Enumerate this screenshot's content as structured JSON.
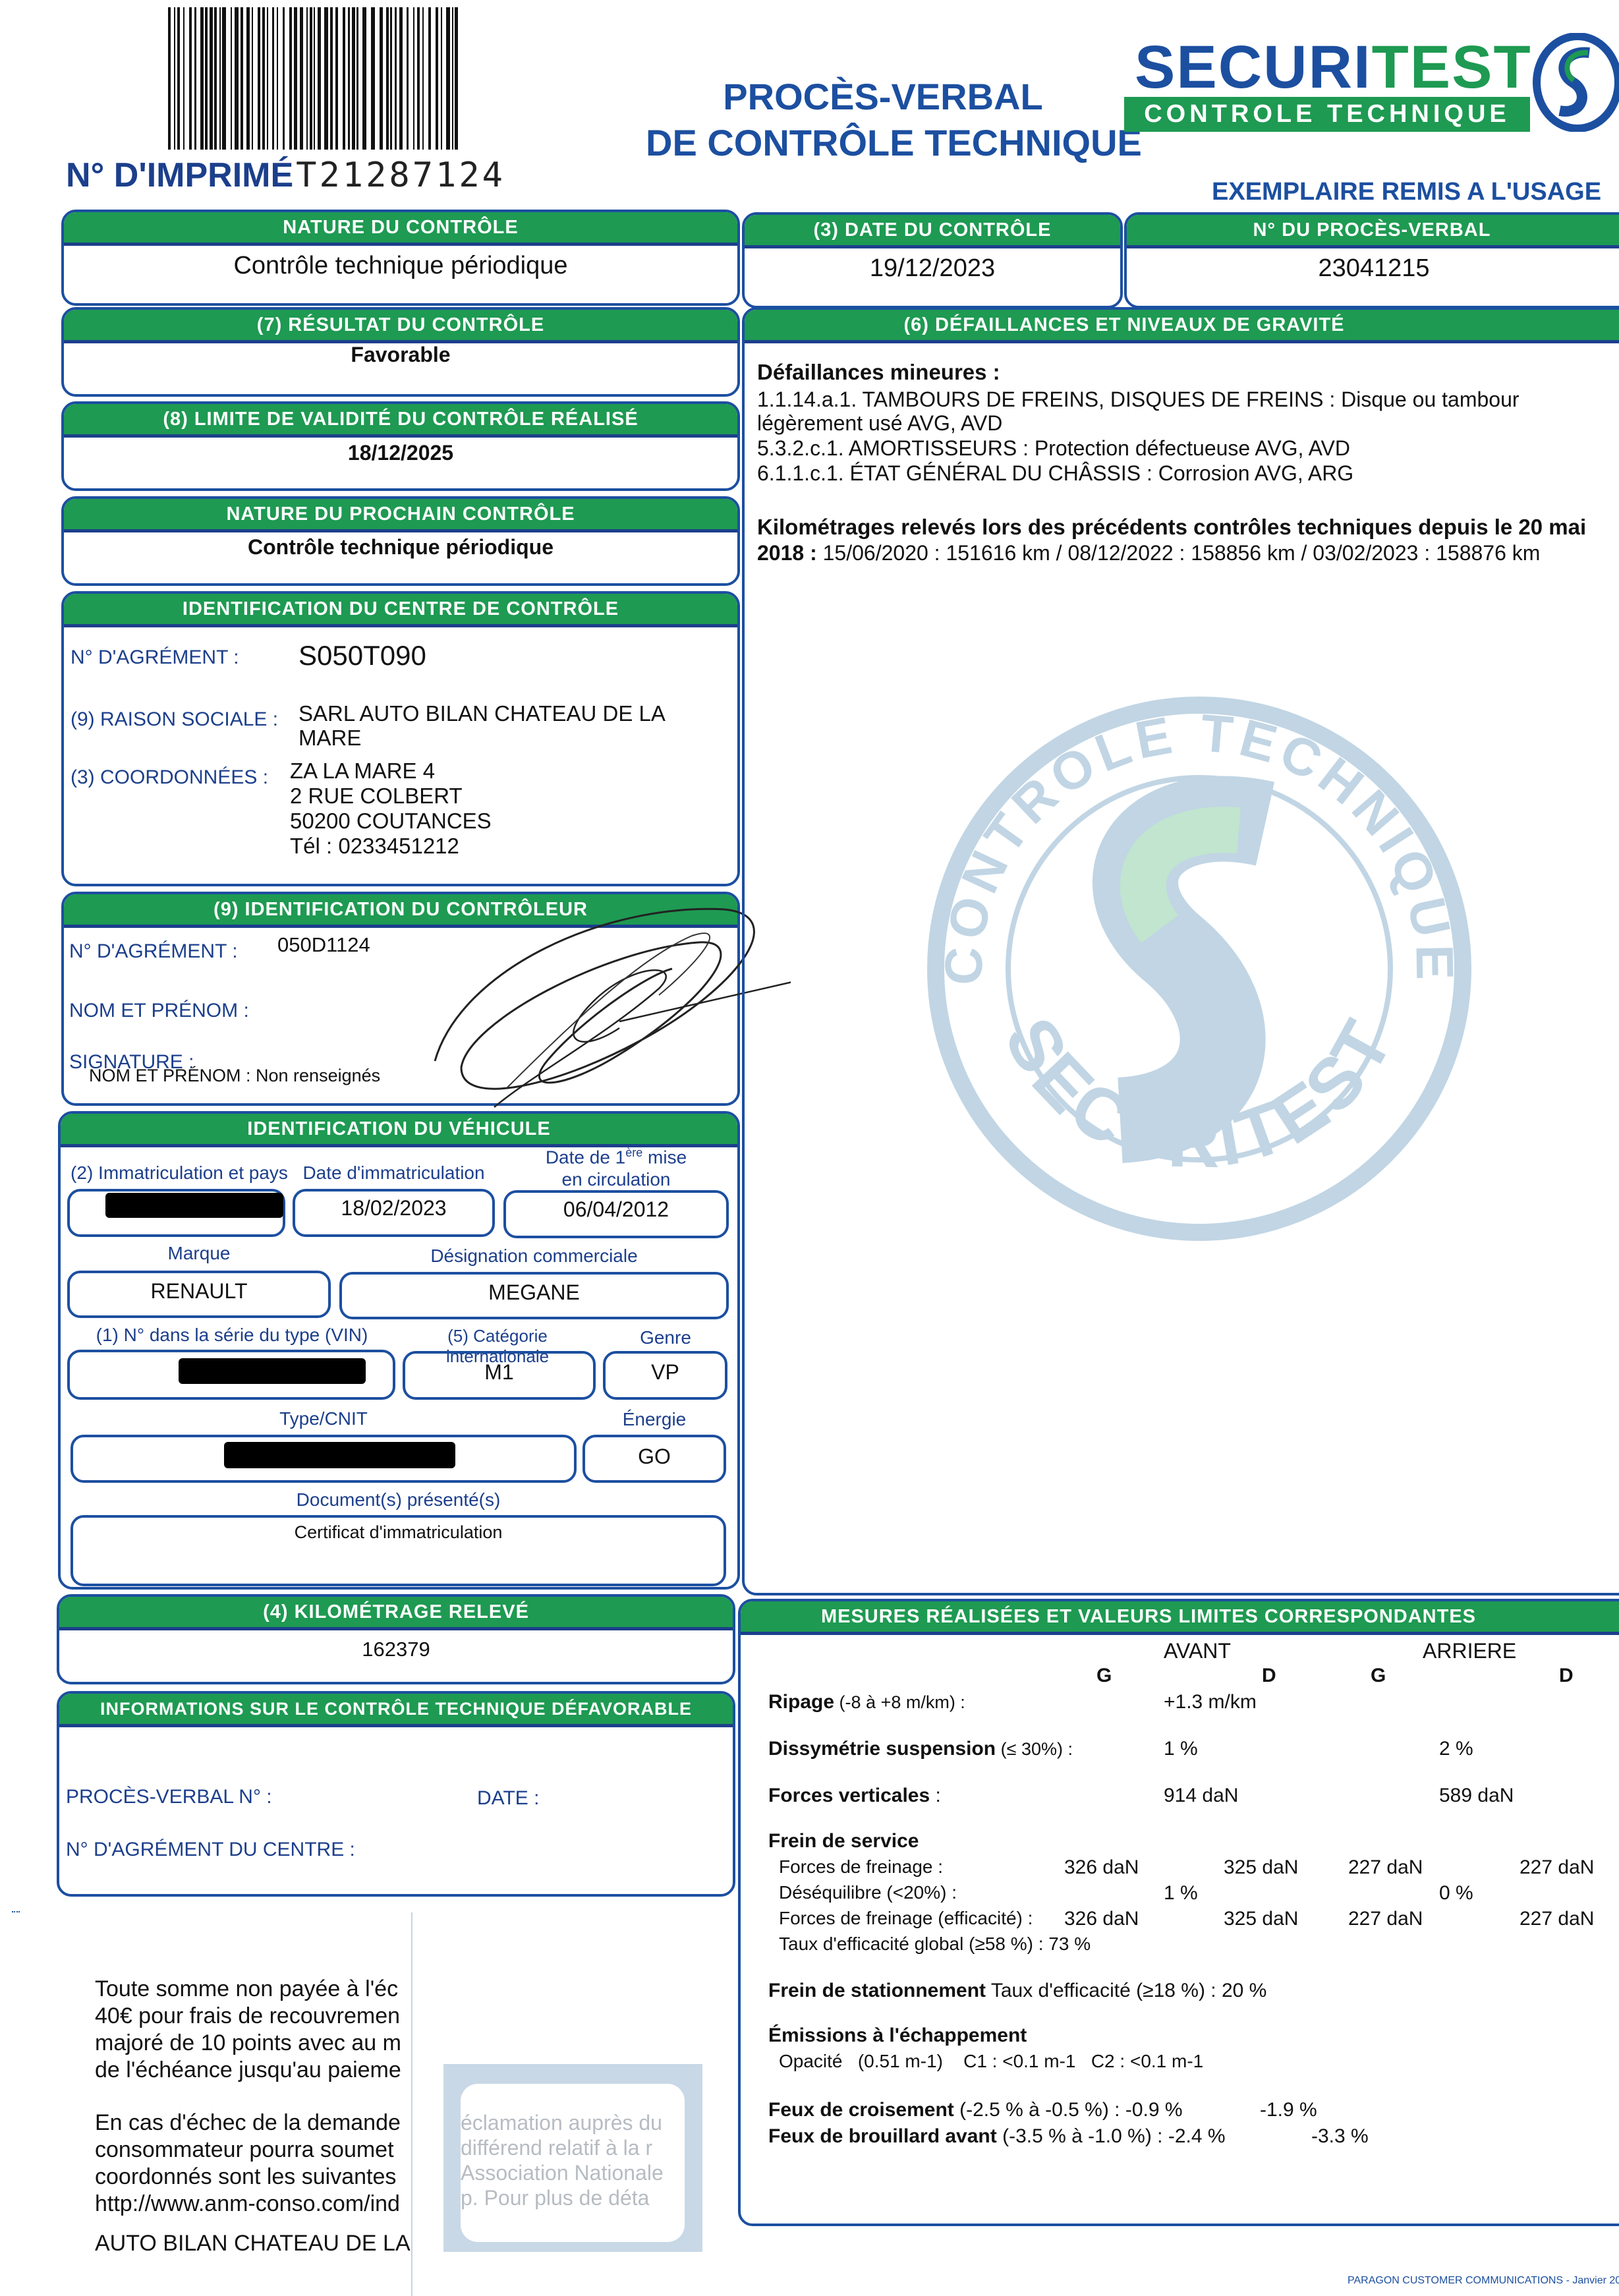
{
  "header": {
    "print_number_label": "N° D'IMPRIMÉ",
    "print_number": "T21287124",
    "title_line1": "PROCÈS-VERBAL",
    "title_line2": "DE CONTRÔLE TECHNIQUE",
    "brand_name_part1": "SECURI",
    "brand_name_part2": "TEST",
    "brand_tagline": "CONTROLE TECHNIQUE",
    "copy_label": "EXEMPLAIRE REMIS A L'USAGE"
  },
  "nature": {
    "title": "NATURE DU CONTRÔLE",
    "value": "Contrôle technique périodique"
  },
  "date": {
    "title": "(3) DATE DU CONTRÔLE",
    "value": "19/12/2023"
  },
  "pv_number": {
    "title": "N° DU PROCÈS-VERBAL",
    "value": "23041215"
  },
  "result": {
    "title": "(7) RÉSULTAT DU CONTRÔLE",
    "value": "Favorable"
  },
  "validity": {
    "title": "(8) LIMITE DE VALIDITÉ DU CONTRÔLE RÉALISÉ",
    "value": "18/12/2025"
  },
  "next_control": {
    "title": "NATURE DU PROCHAIN CONTRÔLE",
    "value": "Contrôle technique périodique"
  },
  "centre": {
    "title": "IDENTIFICATION DU CENTRE DE CONTRÔLE",
    "agrement_label": "N° D'AGRÉMENT :",
    "agrement": "S050T090",
    "raison_label": "(9) RAISON SOCIALE :",
    "raison_lines": [
      "SARL AUTO BILAN CHATEAU DE LA",
      "MARE"
    ],
    "coord_label": "(3) COORDONNÉES :",
    "coord_lines": [
      "ZA LA MARE 4",
      "2 RUE COLBERT",
      "50200 COUTANCES",
      "Tél : 0233451212"
    ]
  },
  "controller": {
    "title": "(9) IDENTIFICATION DU CONTRÔLEUR",
    "agrement_label": "N° D'AGRÉMENT :",
    "agrement": "050D1124",
    "name_label": "NOM ET PRÉNOM :",
    "signature_label": "SIGNATURE :",
    "name_note": "NOM ET PRÉNOM : Non renseignés"
  },
  "vehicle": {
    "title": "IDENTIFICATION DU VÉHICULE",
    "immat_label": "(2) Immatriculation et pays",
    "date_immat_label": "Date d'immatriculation",
    "date_immat": "18/02/2023",
    "first_circ_label_a": "Date de 1",
    "first_circ_label_sup": "ère",
    "first_circ_label_b": " mise",
    "first_circ_label_c": "en circulation",
    "first_circ": "06/04/2012",
    "marque_label": "Marque",
    "marque": "RENAULT",
    "designation_label": "Désignation commerciale",
    "designation": "MEGANE",
    "vin_label": "(1) N° dans la série du type (VIN)",
    "categorie_label": "(5) Catégorie internationale",
    "categorie": "M1",
    "genre_label": "Genre",
    "genre": "VP",
    "type_label": "Type/CNIT",
    "energie_label": "Énergie",
    "energie": "GO",
    "documents_label": "Document(s) présenté(s)",
    "documents": "Certificat d'immatriculation"
  },
  "mileage": {
    "title": "(4) KILOMÉTRAGE RELEVÉ",
    "value": "162379"
  },
  "unfavorable": {
    "title": "INFORMATIONS SUR LE CONTRÔLE TECHNIQUE DÉFAVORABLE",
    "pv_label": "PROCÈS-VERBAL N° :",
    "date_label": "DATE :",
    "agrement_label": "N° D'AGRÉMENT DU CENTRE :"
  },
  "defects": {
    "title": "(6) DÉFAILLANCES ET NIVEAUX DE GRAVITÉ",
    "heading": "Défaillances mineures :",
    "lines": [
      "1.1.14.a.1. TAMBOURS DE FREINS, DISQUES DE FREINS : Disque ou tambour",
      "légèrement usé AVG, AVD",
      "5.3.2.c.1. AMORTISSEURS : Protection défectueuse AVG, AVD",
      "6.1.1.c.1. ÉTAT GÉNÉRAL DU CHÂSSIS : Corrosion AVG, ARG"
    ],
    "mileage_heading_line1": "Kilométrages relevés lors des précédents contrôles techniques depuis le 20 mai",
    "mileage_heading_bold2": "2018 :",
    "mileage_history": " 15/06/2020 : 151616 km / 08/12/2022 : 158856 km / 03/02/2023 : 158876 km"
  },
  "watermark": {
    "top_text": "CONTROLE TECHNIQUE",
    "bottom_text": "SECURITEST"
  },
  "measures": {
    "title": "MESURES RÉALISÉES ET VALEURS LIMITES CORRESPONDANTES",
    "front": "AVANT",
    "rear": "ARRIERE",
    "left": "G",
    "right": "D",
    "ripage_label": "Ripage",
    "ripage_limit": " (-8 à +8 m/km) :",
    "ripage": "+1.3 m/km",
    "dissym_label": "Dissymétrie suspension",
    "dissym_limit": " (≤ 30%) :",
    "dissym_front": "1 %",
    "dissym_rear": "2 %",
    "vertical_label": "Forces verticales",
    "vertical_suffix": " :",
    "vertical_front": "914 daN",
    "vertical_rear": "589 daN",
    "service_label": "Frein de service",
    "braking_label": "Forces de freinage :",
    "braking": [
      "326 daN",
      "325 daN",
      "227 daN",
      "227 daN"
    ],
    "imbalance_label": "Déséquilibre (<20%) :",
    "imbalance_front": "1 %",
    "imbalance_rear": "0 %",
    "braking_eff_label": "Forces de freinage (efficacité) :",
    "braking_eff": [
      "326 daN",
      "325 daN",
      "227 daN",
      "227 daN"
    ],
    "global_eff": "Taux d'efficacité global (≥58 %) : 73 %",
    "parking_label": "Frein de stationnement",
    "parking_value": " Taux d'efficacité (≥18 %) : 20 %",
    "emissions_label": "Émissions à l'échappement",
    "opacity": "Opacité   (0.51 m-1)    C1 : <0.1 m-1   C2 : <0.1 m-1",
    "lowbeam_label": "Feux de croisement",
    "lowbeam_value": " (-2.5 % à  -0.5 %) : -0.9 %",
    "lowbeam_right": "-1.9 %",
    "fog_label": "Feux de brouillard avant",
    "fog_value": " (-3.5 % à -1.0 %) : -2.4 %",
    "fog_right": "-3.3 %"
  },
  "notice": {
    "para1": [
      "Toute somme non payée à l'éc",
      "40€ pour frais de recouvremen",
      "majoré de 10 points avec au m",
      "de l'échéance jusqu'au paieme"
    ],
    "para2": [
      "En cas d'échec de la demande",
      "consommateur pourra soumet",
      "coordonnés sont les suivantes",
      "http://www.anm-conso.com/ind"
    ],
    "centre_line": "AUTO BILAN CHATEAU DE LA",
    "window_lines": [
      "éclamation auprès du",
      "différend relatif à la r",
      "Association Nationale",
      "p. Pour plus de déta"
    ]
  },
  "footer": {
    "printer": "PARAGON CUSTOMER COMMUNICATIONS - Janvier 20"
  },
  "colors": {
    "green": "#1e9a52",
    "blue": "#1c3f8c"
  }
}
